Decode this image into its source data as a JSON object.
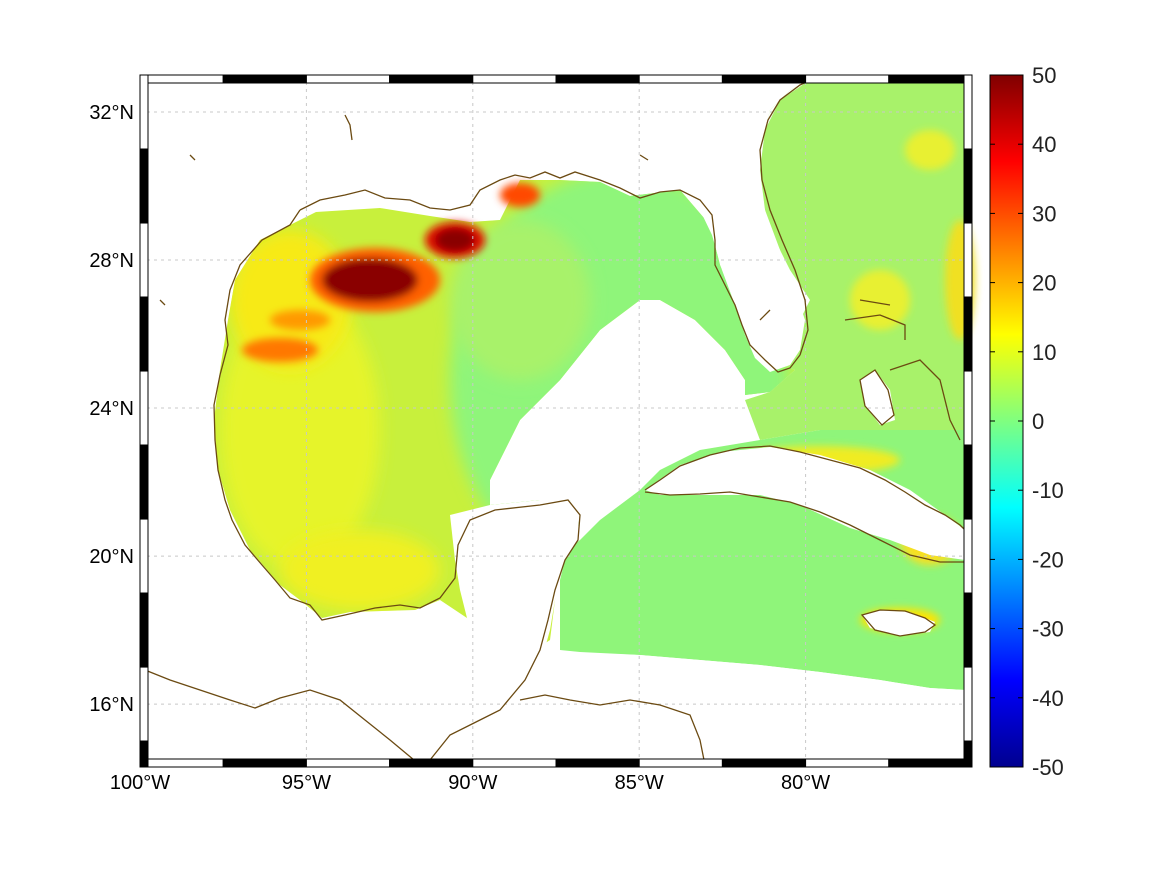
{
  "map": {
    "x_ticks": [
      {
        "lon": -100,
        "label": "100°W"
      },
      {
        "lon": -95,
        "label": "95°W"
      },
      {
        "lon": -90,
        "label": "90°W"
      },
      {
        "lon": -85,
        "label": "85°W"
      },
      {
        "lon": -80,
        "label": "80°W"
      }
    ],
    "y_ticks": [
      {
        "lat": 32,
        "label": "32°N"
      },
      {
        "lat": 28,
        "label": "28°N"
      },
      {
        "lat": 24,
        "label": "24°N"
      },
      {
        "lat": 20,
        "label": "20°N"
      },
      {
        "lat": 16,
        "label": "16°N"
      }
    ],
    "lon_range": [
      -100,
      -75
    ],
    "lat_range": [
      14.3,
      33
    ],
    "grid": true,
    "coast_color": "#6b4a12"
  },
  "colorbar": {
    "ticks": [
      {
        "value": 50,
        "label": "50"
      },
      {
        "value": 40,
        "label": "40"
      },
      {
        "value": 30,
        "label": "30"
      },
      {
        "value": 20,
        "label": "20"
      },
      {
        "value": 10,
        "label": "10"
      },
      {
        "value": 0,
        "label": "0"
      },
      {
        "value": -10,
        "label": "-10"
      },
      {
        "value": -20,
        "label": "-20"
      },
      {
        "value": -30,
        "label": "-30"
      },
      {
        "value": -40,
        "label": "-40"
      },
      {
        "value": -50,
        "label": "-50"
      }
    ],
    "range": [
      -50,
      50
    ],
    "colormap": "jet"
  }
}
